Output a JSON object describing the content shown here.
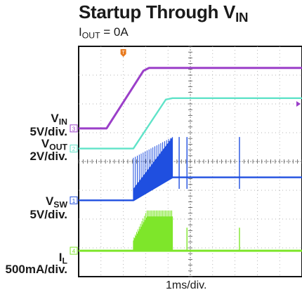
{
  "title": {
    "main": "Startup Through V",
    "sub": "IN"
  },
  "subtitle": {
    "main": "I",
    "sub": "OUT",
    "rest": " = 0A"
  },
  "channels": [
    {
      "id": "3",
      "name": "V",
      "name_sub": "IN",
      "scale": "5V/div.",
      "color": "#9b3fc9"
    },
    {
      "id": "2",
      "name": "V",
      "name_sub": "OUT",
      "scale": "2V/div.",
      "color": "#5fe3c8"
    },
    {
      "id": "1",
      "name": "V",
      "name_sub": "SW",
      "scale": "5V/div.",
      "color": "#1f4fe0"
    },
    {
      "id": "4",
      "name": "I",
      "name_sub": "L",
      "scale": "500mA/div.",
      "color": "#7ee62a"
    }
  ],
  "trigger_marker": "T",
  "x_scale_label": "1ms/div.",
  "chart_data": {
    "type": "line",
    "title": "Startup Through VIN",
    "subtitle": "IOUT = 0A",
    "xlabel": "1ms/div.",
    "x_unit": "div",
    "xlim": [
      0,
      10
    ],
    "ylim": [
      -4,
      4
    ],
    "grid": true,
    "series": [
      {
        "name": "VIN",
        "scale": "5V/div.",
        "x": [
          0,
          1.25,
          2.9,
          3.15,
          10
        ],
        "y": [
          1.15,
          1.15,
          3.15,
          3.25,
          3.25
        ]
      },
      {
        "name": "VOUT",
        "scale": "2V/div.",
        "x": [
          0,
          2.45,
          3.9,
          4.2,
          10
        ],
        "y": [
          0.45,
          0.45,
          2.15,
          2.2,
          2.2
        ]
      },
      {
        "name": "VSW",
        "scale": "5V/div.",
        "baseline_x": [
          0,
          2.45,
          4.2,
          10
        ],
        "baseline_y": [
          -1.35,
          -1.35,
          -0.55,
          -0.55
        ],
        "switching_burst_x": [
          2.45,
          4.2
        ],
        "burst_peak_y": 0.85,
        "spikes_x": [
          4.5,
          4.85,
          7.2
        ],
        "spike_peak_y": 0.85
      },
      {
        "name": "IL",
        "scale": "500mA/div.",
        "baseline_y": -3.1,
        "switching_burst_x": [
          2.45,
          4.2
        ],
        "burst_peak_y": -1.7,
        "spikes_x": [
          4.85,
          7.2
        ],
        "spike_peak_y": -2.3
      }
    ]
  }
}
